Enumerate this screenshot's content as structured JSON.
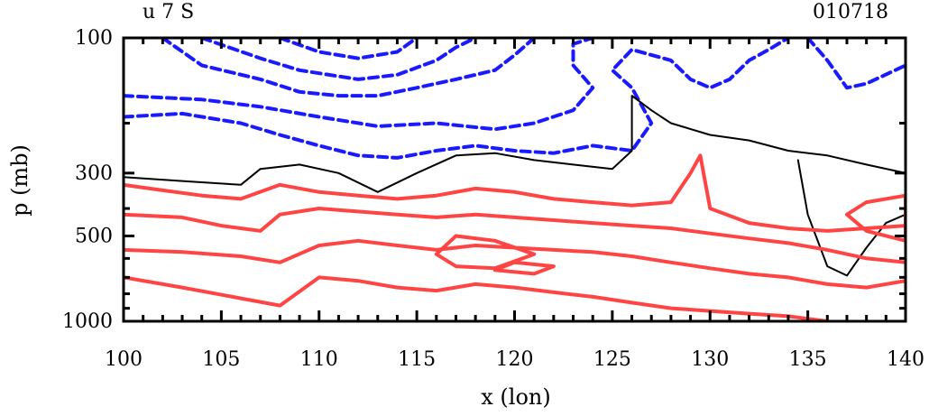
{
  "chart_data": {
    "type": "contour",
    "title_left": "u 7 S",
    "title_right": "010718",
    "xlabel": "x (lon)",
    "ylabel": "p (mb)",
    "x_range": [
      100,
      140
    ],
    "y_axis_scale": "log",
    "y_range": [
      100,
      1000
    ],
    "x_ticks": [
      "100",
      "105",
      "110",
      "115",
      "120",
      "125",
      "130",
      "135",
      "140"
    ],
    "y_ticks": [
      "100",
      "300",
      "500",
      "1000"
    ],
    "colors": {
      "negative": "#1a1aff",
      "zero": "#000000",
      "positive": "#ff4444"
    },
    "series": [
      {
        "level_sign": "negative",
        "style": "dashed",
        "contours": [
          [
            [
              100,
              190
            ],
            [
              103,
              185
            ],
            [
              106,
              200
            ],
            [
              108,
              220
            ],
            [
              110,
              240
            ],
            [
              112,
              260
            ],
            [
              114,
              265
            ],
            [
              116,
              250
            ],
            [
              118,
              240
            ],
            [
              120,
              250
            ],
            [
              122,
              255
            ],
            [
              124,
              240
            ],
            [
              126,
              250
            ],
            [
              127,
              200
            ],
            [
              126,
              150
            ],
            [
              125,
              130
            ],
            [
              126,
              110
            ],
            [
              128,
              120
            ],
            [
              129,
              140
            ],
            [
              130,
              150
            ],
            [
              131,
              140
            ],
            [
              132,
              120
            ],
            [
              133,
              110
            ],
            [
              134,
              100
            ]
          ],
          [
            [
              100,
              160
            ],
            [
              104,
              165
            ],
            [
              107,
              175
            ],
            [
              110,
              190
            ],
            [
              113,
              205
            ],
            [
              116,
              200
            ],
            [
              119,
              210
            ],
            [
              121,
              200
            ],
            [
              123,
              180
            ],
            [
              124,
              150
            ],
            [
              123,
              125
            ],
            [
              123,
              105
            ],
            [
              124,
              100
            ]
          ],
          [
            [
              102,
              100
            ],
            [
              104,
              125
            ],
            [
              107,
              140
            ],
            [
              109,
              155
            ],
            [
              111,
              160
            ],
            [
              113,
              160
            ],
            [
              115,
              150
            ],
            [
              117,
              140
            ],
            [
              119,
              130
            ],
            [
              120,
              115
            ],
            [
              121,
              100
            ]
          ],
          [
            [
              104,
              100
            ],
            [
              107,
              118
            ],
            [
              109,
              130
            ],
            [
              112,
              140
            ],
            [
              114,
              135
            ],
            [
              116,
              120
            ],
            [
              117,
              108
            ],
            [
              118,
              100
            ]
          ],
          [
            [
              108,
              100
            ],
            [
              110,
              112
            ],
            [
              112,
              118
            ],
            [
              114,
              112
            ],
            [
              115,
              100
            ]
          ],
          [
            [
              135,
              100
            ],
            [
              136,
              120
            ],
            [
              137,
              150
            ],
            [
              138,
              145
            ],
            [
              140,
              125
            ]
          ]
        ]
      },
      {
        "level_sign": "zero",
        "style": "solid",
        "contours": [
          [
            [
              100,
              310
            ],
            [
              103,
              320
            ],
            [
              106,
              330
            ],
            [
              107,
              290
            ],
            [
              109,
              280
            ],
            [
              111,
              300
            ],
            [
              113,
              350
            ],
            [
              115,
              300
            ],
            [
              117,
              260
            ],
            [
              119,
              255
            ],
            [
              121,
              270
            ],
            [
              123,
              280
            ],
            [
              125,
              290
            ],
            [
              126,
              250
            ],
            [
              126,
              160
            ],
            [
              127,
              180
            ],
            [
              128,
              200
            ],
            [
              130,
              220
            ],
            [
              132,
              230
            ],
            [
              134,
              250
            ],
            [
              136,
              260
            ],
            [
              138,
              280
            ],
            [
              140,
              300
            ]
          ],
          [
            [
              134.5,
              270
            ],
            [
              135,
              420
            ],
            [
              136,
              640
            ],
            [
              137,
              690
            ],
            [
              138,
              550
            ],
            [
              139,
              450
            ],
            [
              140,
              420
            ]
          ]
        ]
      },
      {
        "level_sign": "positive",
        "style": "solid",
        "contours": [
          [
            [
              100,
              330
            ],
            [
              102,
              345
            ],
            [
              104,
              360
            ],
            [
              106,
              370
            ],
            [
              108,
              330
            ],
            [
              110,
              350
            ],
            [
              112,
              360
            ],
            [
              114,
              370
            ],
            [
              116,
              360
            ],
            [
              118,
              340
            ],
            [
              120,
              350
            ],
            [
              122,
              370
            ],
            [
              124,
              380
            ],
            [
              126,
              390
            ],
            [
              128,
              380
            ],
            [
              129,
              300
            ],
            [
              129.5,
              260
            ],
            [
              130,
              400
            ],
            [
              132,
              450
            ],
            [
              134,
              470
            ],
            [
              136,
              480
            ],
            [
              138,
              470
            ],
            [
              140,
              460
            ]
          ],
          [
            [
              100,
              420
            ],
            [
              103,
              430
            ],
            [
              105,
              460
            ],
            [
              107,
              480
            ],
            [
              108,
              420
            ],
            [
              110,
              400
            ],
            [
              112,
              410
            ],
            [
              114,
              420
            ],
            [
              116,
              430
            ],
            [
              118,
              420
            ],
            [
              120,
              430
            ],
            [
              122,
              440
            ],
            [
              124,
              450
            ],
            [
              126,
              460
            ],
            [
              128,
              470
            ],
            [
              130,
              490
            ],
            [
              132,
              510
            ],
            [
              134,
              530
            ],
            [
              136,
              560
            ],
            [
              138,
              600
            ],
            [
              140,
              620
            ]
          ],
          [
            [
              100,
              560
            ],
            [
              103,
              570
            ],
            [
              106,
              590
            ],
            [
              108,
              620
            ],
            [
              110,
              540
            ],
            [
              112,
              520
            ],
            [
              114,
              540
            ],
            [
              116,
              560
            ],
            [
              118,
              540
            ],
            [
              120,
              550
            ],
            [
              122,
              560
            ],
            [
              124,
              570
            ],
            [
              126,
              590
            ],
            [
              128,
              620
            ],
            [
              130,
              650
            ],
            [
              132,
              680
            ],
            [
              134,
              700
            ],
            [
              136,
              740
            ],
            [
              138,
              760
            ],
            [
              140,
              720
            ]
          ],
          [
            [
              100,
              700
            ],
            [
              103,
              760
            ],
            [
              106,
              830
            ],
            [
              108,
              880
            ],
            [
              110,
              700
            ],
            [
              112,
              720
            ],
            [
              114,
              760
            ],
            [
              116,
              780
            ],
            [
              118,
              740
            ],
            [
              120,
              760
            ],
            [
              122,
              790
            ],
            [
              124,
              820
            ],
            [
              126,
              860
            ],
            [
              128,
              900
            ],
            [
              130,
              920
            ],
            [
              132,
              940
            ],
            [
              134,
              960
            ],
            [
              136,
              1000
            ]
          ],
          [
            [
              117,
              500
            ],
            [
              119,
              520
            ],
            [
              121,
              580
            ],
            [
              119,
              650
            ],
            [
              117,
              640
            ],
            [
              116,
              580
            ],
            [
              117,
              500
            ]
          ],
          [
            [
              120,
              620
            ],
            [
              122,
              640
            ],
            [
              121,
              680
            ],
            [
              119,
              660
            ],
            [
              120,
              620
            ]
          ],
          [
            [
              138,
              380
            ],
            [
              140,
              360
            ],
            [
              140,
              520
            ],
            [
              138,
              480
            ],
            [
              137,
              420
            ],
            [
              138,
              380
            ]
          ]
        ]
      }
    ]
  }
}
